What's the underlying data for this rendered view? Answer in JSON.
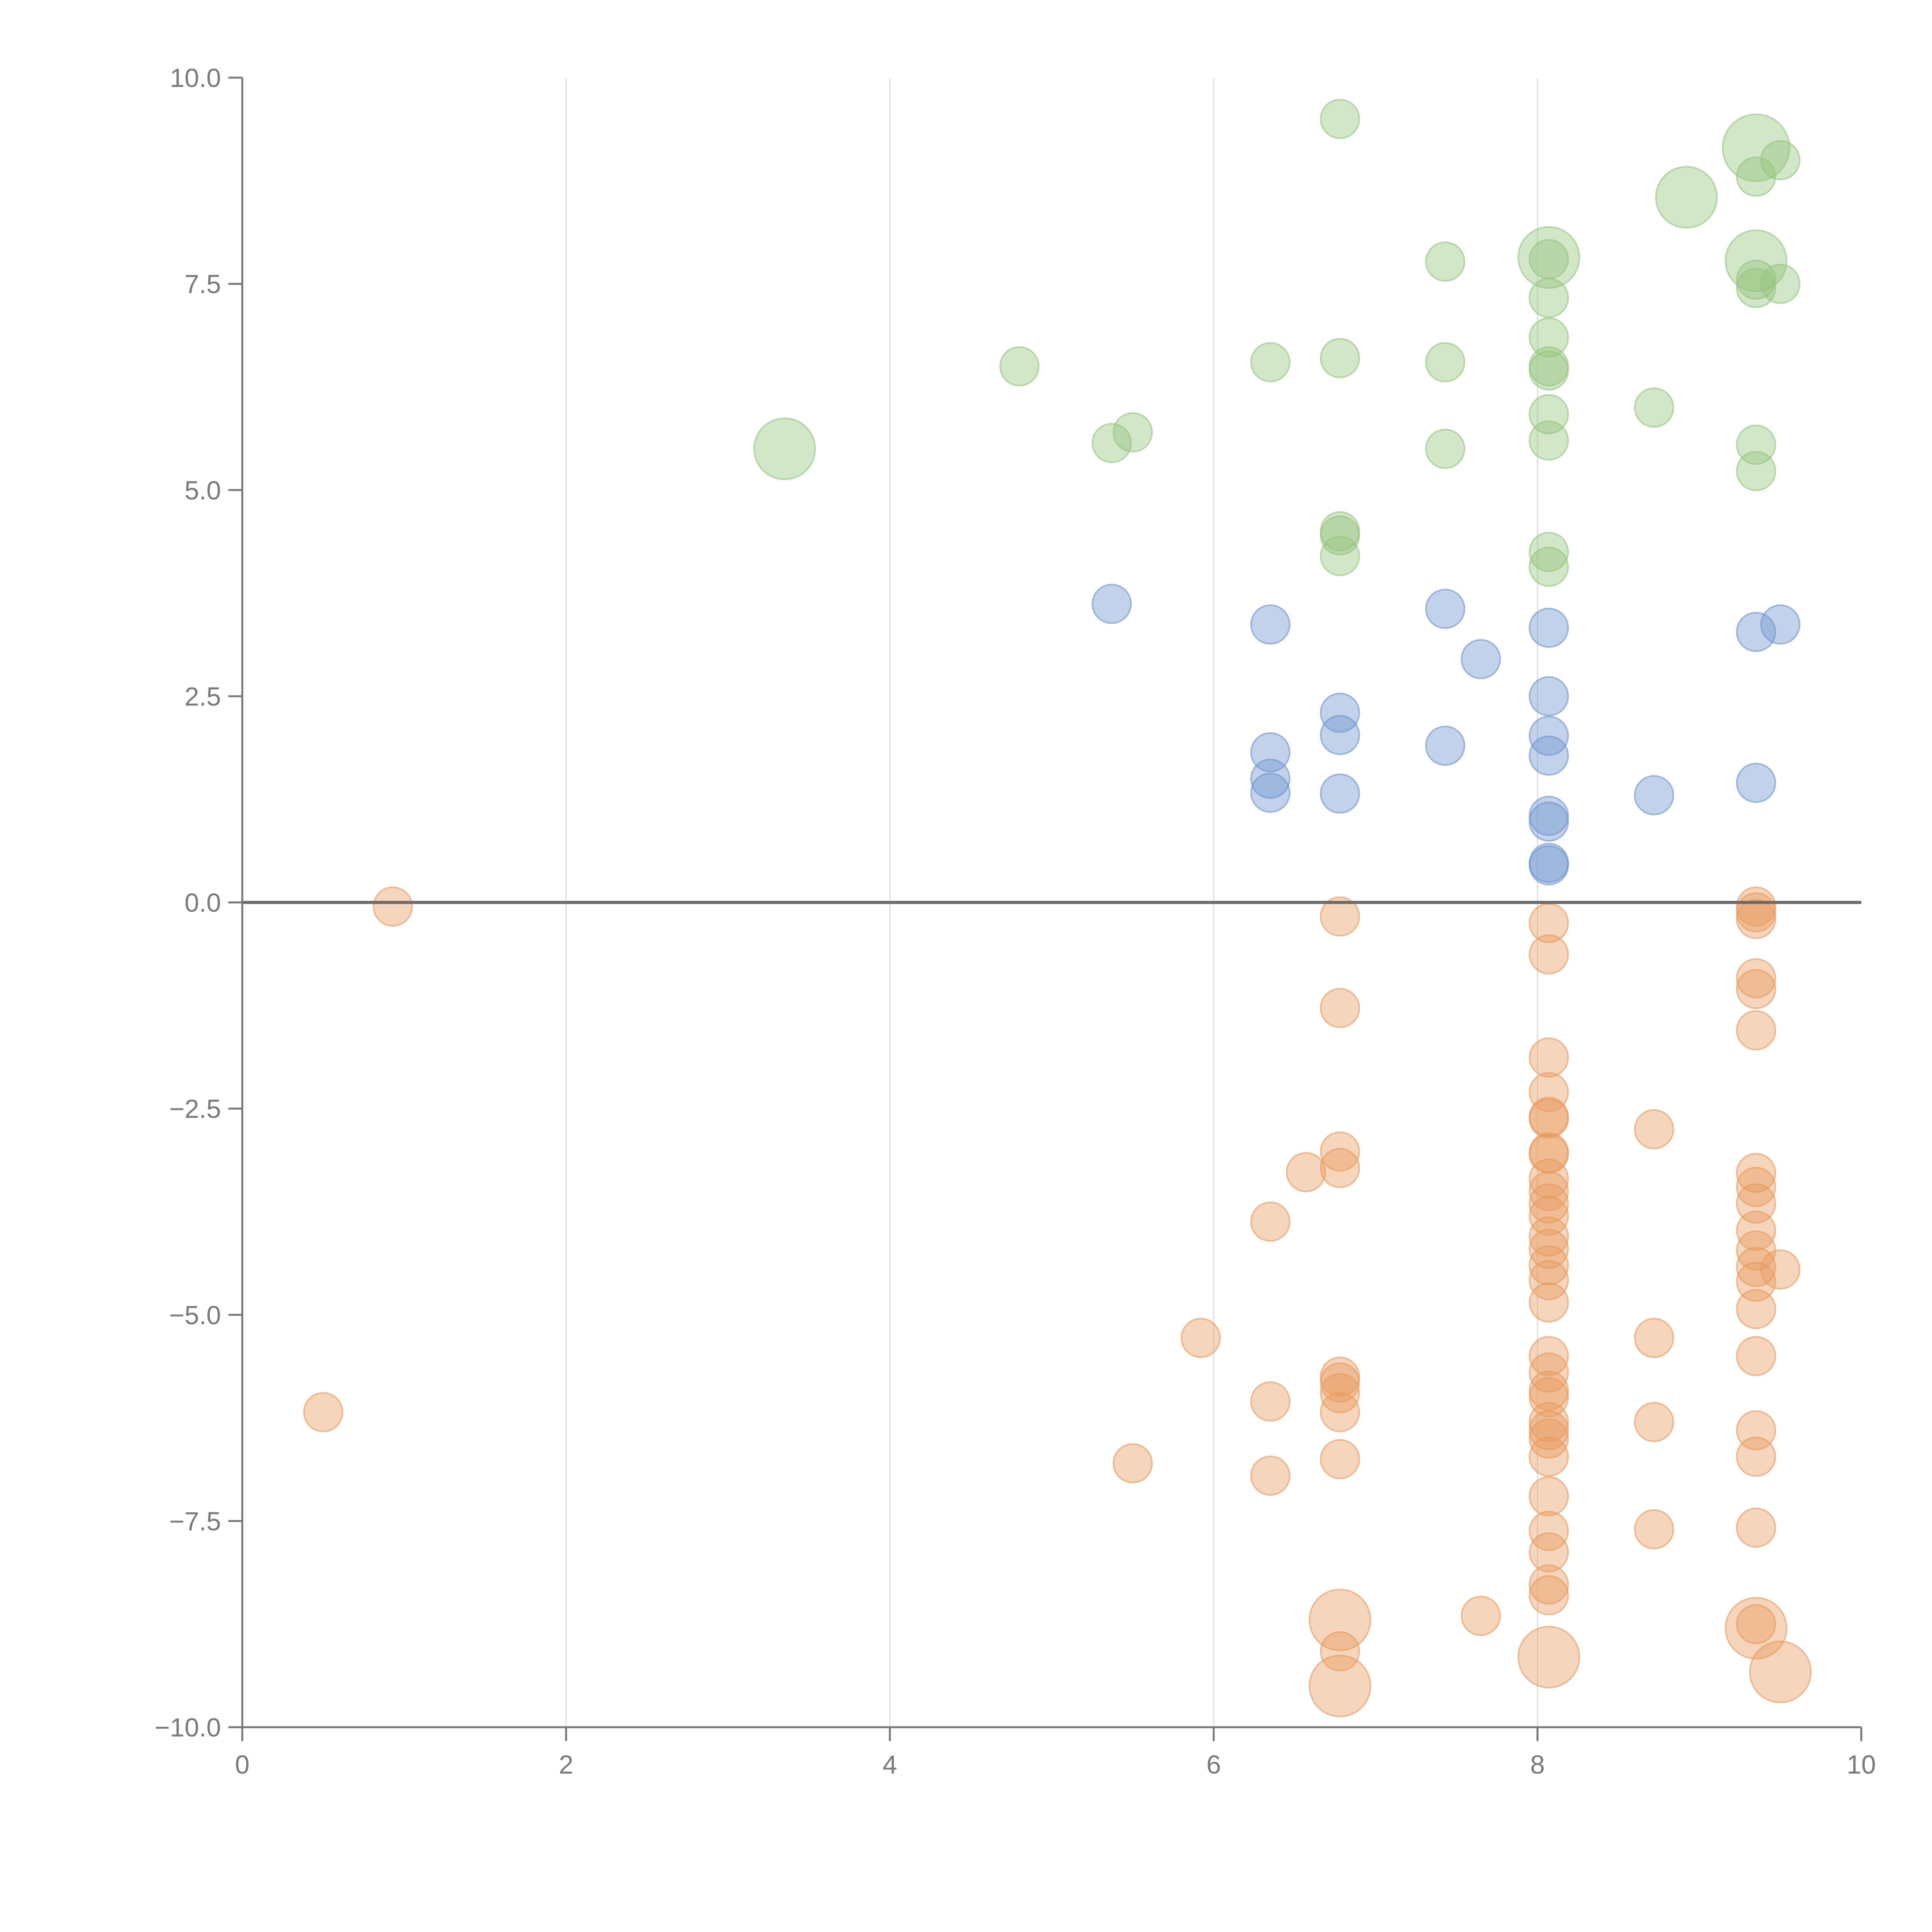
{
  "chart_data": {
    "type": "scatter",
    "title": "",
    "xlabel": "",
    "ylabel": "",
    "xlim": [
      0,
      10
    ],
    "ylim": [
      -10,
      10
    ],
    "x_ticks": [
      0,
      2,
      4,
      6,
      8,
      10
    ],
    "x_tick_labels": [
      "0",
      "2",
      "4",
      "6",
      "8",
      "10"
    ],
    "y_ticks": [
      10,
      7.5,
      5,
      2.5,
      0,
      -2.5,
      -5,
      -7.5,
      -10
    ],
    "y_tick_labels": [
      "10.0",
      "7.5",
      "5.0",
      "2.5",
      "0.0",
      "−2.5",
      "−5.0",
      "−7.5",
      "−10.0"
    ],
    "grid": "vertical",
    "reference_line_y": 0,
    "colors": {
      "green": "#93c47d",
      "blue": "#6d93cd",
      "orange": "#e69a5c",
      "axis": "#777777",
      "grid": "#dddddd"
    },
    "series": [
      {
        "name": "green",
        "color": "#93c47d",
        "points": [
          [
            6.78,
            9.5,
            1
          ],
          [
            9.35,
            9.15,
            3
          ],
          [
            9.35,
            8.8,
            1
          ],
          [
            9.5,
            9.0,
            1
          ],
          [
            8.92,
            8.55,
            2.5
          ],
          [
            8.07,
            7.82,
            2.5
          ],
          [
            8.07,
            7.8,
            1
          ],
          [
            9.35,
            7.78,
            2.5
          ],
          [
            7.43,
            7.77,
            1
          ],
          [
            9.35,
            7.55,
            1
          ],
          [
            9.35,
            7.45,
            1
          ],
          [
            9.5,
            7.5,
            1
          ],
          [
            8.07,
            7.33,
            1
          ],
          [
            8.07,
            6.85,
            1
          ],
          [
            8.07,
            6.5,
            1
          ],
          [
            8.07,
            6.45,
            1
          ],
          [
            6.78,
            6.6,
            1
          ],
          [
            6.35,
            6.55,
            1
          ],
          [
            7.43,
            6.55,
            1
          ],
          [
            4.8,
            6.5,
            1
          ],
          [
            8.72,
            6.0,
            1
          ],
          [
            8.07,
            5.92,
            1
          ],
          [
            3.35,
            5.5,
            2.5
          ],
          [
            5.37,
            5.57,
            1
          ],
          [
            5.5,
            5.7,
            1
          ],
          [
            7.43,
            5.5,
            1
          ],
          [
            8.07,
            5.6,
            1
          ],
          [
            9.35,
            5.55,
            1
          ],
          [
            9.35,
            5.23,
            1
          ],
          [
            6.78,
            4.5,
            1
          ],
          [
            6.78,
            4.45,
            1
          ],
          [
            6.78,
            4.2,
            1
          ],
          [
            8.07,
            4.25,
            1
          ],
          [
            8.07,
            4.07,
            1
          ]
        ]
      },
      {
        "name": "blue",
        "color": "#6d93cd",
        "points": [
          [
            5.37,
            3.62,
            1
          ],
          [
            6.35,
            3.37,
            1
          ],
          [
            7.43,
            3.56,
            1
          ],
          [
            8.07,
            3.33,
            1
          ],
          [
            9.35,
            3.28,
            1
          ],
          [
            9.5,
            3.37,
            1
          ],
          [
            7.65,
            2.95,
            1
          ],
          [
            8.07,
            2.5,
            1
          ],
          [
            6.78,
            2.3,
            1
          ],
          [
            6.78,
            2.03,
            1
          ],
          [
            8.07,
            2.02,
            1
          ],
          [
            8.07,
            1.78,
            1
          ],
          [
            6.35,
            1.82,
            1
          ],
          [
            7.43,
            1.9,
            1
          ],
          [
            6.35,
            1.5,
            1
          ],
          [
            6.35,
            1.33,
            1
          ],
          [
            6.78,
            1.32,
            1
          ],
          [
            8.72,
            1.3,
            1
          ],
          [
            9.35,
            1.45,
            1
          ],
          [
            8.07,
            1.05,
            1
          ],
          [
            8.07,
            0.98,
            1
          ],
          [
            8.07,
            0.48,
            1
          ],
          [
            8.07,
            0.45,
            1
          ]
        ]
      },
      {
        "name": "orange",
        "color": "#e69a5c",
        "points": [
          [
            0.93,
            -0.05,
            1
          ],
          [
            6.78,
            -0.17,
            1
          ],
          [
            8.07,
            -0.25,
            1
          ],
          [
            9.35,
            -0.05,
            1
          ],
          [
            9.35,
            -0.12,
            1
          ],
          [
            9.35,
            -0.2,
            1
          ],
          [
            8.07,
            -0.63,
            1
          ],
          [
            9.35,
            -0.92,
            1
          ],
          [
            9.35,
            -1.05,
            1
          ],
          [
            6.78,
            -1.28,
            1
          ],
          [
            9.35,
            -1.55,
            1
          ],
          [
            8.07,
            -1.88,
            1
          ],
          [
            8.07,
            -2.3,
            1
          ],
          [
            8.07,
            -2.6,
            1
          ],
          [
            8.07,
            -2.62,
            1
          ],
          [
            8.72,
            -2.75,
            1
          ],
          [
            8.07,
            -3.03,
            1
          ],
          [
            8.07,
            -3.05,
            1
          ],
          [
            6.78,
            -3.02,
            1
          ],
          [
            6.78,
            -3.22,
            1
          ],
          [
            6.57,
            -3.27,
            1
          ],
          [
            9.35,
            -3.28,
            1
          ],
          [
            8.07,
            -3.35,
            1
          ],
          [
            8.07,
            -3.5,
            1
          ],
          [
            9.35,
            -3.45,
            1
          ],
          [
            8.07,
            -3.65,
            1
          ],
          [
            9.35,
            -3.65,
            1
          ],
          [
            8.07,
            -3.8,
            1
          ],
          [
            6.35,
            -3.87,
            1
          ],
          [
            9.35,
            -3.98,
            1
          ],
          [
            8.07,
            -4.05,
            1
          ],
          [
            8.07,
            -4.2,
            1
          ],
          [
            9.35,
            -4.22,
            1
          ],
          [
            8.07,
            -4.4,
            1
          ],
          [
            9.35,
            -4.42,
            1
          ],
          [
            9.5,
            -4.45,
            1
          ],
          [
            8.07,
            -4.58,
            1
          ],
          [
            9.35,
            -4.6,
            1
          ],
          [
            8.07,
            -4.85,
            1
          ],
          [
            9.35,
            -4.93,
            1
          ],
          [
            5.92,
            -5.28,
            1
          ],
          [
            8.72,
            -5.28,
            1
          ],
          [
            8.07,
            -5.5,
            1
          ],
          [
            9.35,
            -5.5,
            1
          ],
          [
            8.07,
            -5.7,
            1
          ],
          [
            6.78,
            -5.75,
            1
          ],
          [
            6.78,
            -5.82,
            1
          ],
          [
            6.78,
            -5.95,
            1
          ],
          [
            8.07,
            -5.92,
            1
          ],
          [
            8.07,
            -6.0,
            1
          ],
          [
            6.35,
            -6.05,
            1
          ],
          [
            0.5,
            -6.18,
            1
          ],
          [
            6.78,
            -6.18,
            1
          ],
          [
            8.07,
            -6.3,
            1
          ],
          [
            8.07,
            -6.4,
            1
          ],
          [
            8.72,
            -6.3,
            1
          ],
          [
            8.07,
            -6.5,
            1
          ],
          [
            9.35,
            -6.4,
            1
          ],
          [
            8.07,
            -6.72,
            1
          ],
          [
            6.78,
            -6.75,
            1
          ],
          [
            9.35,
            -6.72,
            1
          ],
          [
            5.5,
            -6.8,
            1
          ],
          [
            6.35,
            -6.95,
            1
          ],
          [
            8.07,
            -7.2,
            1
          ],
          [
            8.07,
            -7.62,
            1
          ],
          [
            8.72,
            -7.6,
            1
          ],
          [
            9.35,
            -7.58,
            1
          ],
          [
            8.07,
            -7.88,
            1
          ],
          [
            8.07,
            -8.27,
            1
          ],
          [
            8.07,
            -8.4,
            1
          ],
          [
            7.65,
            -8.65,
            1
          ],
          [
            6.78,
            -8.7,
            2.5
          ],
          [
            9.35,
            -8.8,
            2.5
          ],
          [
            9.35,
            -8.75,
            1
          ],
          [
            6.78,
            -9.08,
            1
          ],
          [
            8.07,
            -9.15,
            2.5
          ],
          [
            6.78,
            -9.5,
            2.5
          ],
          [
            9.5,
            -9.33,
            2.5
          ]
        ]
      }
    ]
  }
}
